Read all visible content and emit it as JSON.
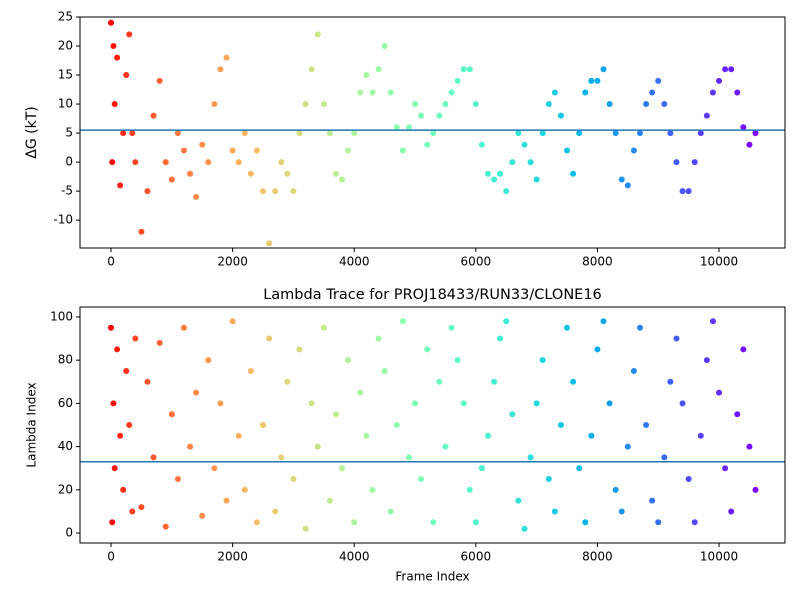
{
  "chart_data": [
    {
      "type": "scatter",
      "ylabel": "ΔG (kT)",
      "colormap": "rainbow_r",
      "xlim": [
        -510,
        11085
      ],
      "ylim": [
        -14.8,
        25
      ],
      "xticks": [
        0,
        2000,
        4000,
        6000,
        8000,
        10000
      ],
      "yticks": [
        -10,
        -5,
        0,
        5,
        10,
        15,
        20,
        25
      ],
      "hline": 5.5,
      "hline_color": "#1f77b4",
      "x": [
        0,
        20,
        40,
        60,
        100,
        150,
        200,
        250,
        300,
        350,
        400,
        500,
        600,
        700,
        800,
        900,
        1000,
        1100,
        1200,
        1300,
        1400,
        1500,
        1600,
        1700,
        1800,
        1900,
        2000,
        2100,
        2200,
        2300,
        2400,
        2500,
        2600,
        2700,
        2800,
        2900,
        3000,
        3100,
        3200,
        3300,
        3400,
        3500,
        3600,
        3700,
        3800,
        3900,
        4000,
        4100,
        4200,
        4300,
        4400,
        4500,
        4600,
        4700,
        4800,
        4900,
        5000,
        5100,
        5200,
        5300,
        5400,
        5500,
        5600,
        5700,
        5800,
        5900,
        6000,
        6100,
        6200,
        6300,
        6400,
        6500,
        6600,
        6700,
        6800,
        6900,
        7000,
        7100,
        7200,
        7300,
        7400,
        7500,
        7600,
        7700,
        7800,
        7900,
        8000,
        8100,
        8200,
        8300,
        8400,
        8500,
        8600,
        8700,
        8800,
        8900,
        9000,
        9100,
        9200,
        9300,
        9400,
        9500,
        9600,
        9700,
        9800,
        9900,
        10000,
        10100,
        10200,
        10300,
        10400,
        10500,
        10600
      ],
      "values": [
        24,
        0,
        20,
        10,
        18,
        -4,
        5,
        15,
        22,
        5,
        0,
        -12,
        -5,
        8,
        14,
        0,
        -3,
        5,
        2,
        -2,
        -6,
        3,
        0,
        10,
        16,
        18,
        2,
        0,
        5,
        -2,
        2,
        -5,
        -14,
        -5,
        0,
        -2,
        -5,
        5,
        10,
        16,
        22,
        10,
        5,
        -2,
        -3,
        2,
        5,
        12,
        15,
        12,
        16,
        20,
        12,
        6,
        2,
        6,
        10,
        8,
        3,
        5,
        8,
        10,
        12,
        14,
        16,
        16,
        10,
        3,
        -2,
        -3,
        -2,
        -5,
        0,
        5,
        3,
        0,
        -3,
        5,
        10,
        12,
        8,
        2,
        -2,
        5,
        12,
        14,
        14,
        16,
        10,
        5,
        -3,
        -4,
        2,
        5,
        10,
        12,
        14,
        10,
        5,
        0,
        -5,
        -5,
        0,
        5,
        8,
        12,
        14,
        16,
        16,
        12,
        6,
        3,
        5
      ]
    },
    {
      "type": "scatter",
      "title": "Lambda Trace for PROJ18433/RUN33/CLONE16",
      "xlabel": "Frame Index",
      "ylabel": "Lambda Index",
      "colormap": "rainbow_r",
      "xlim": [
        -510,
        11085
      ],
      "ylim": [
        -4.6,
        104.6
      ],
      "xticks": [
        0,
        2000,
        4000,
        6000,
        8000,
        10000
      ],
      "yticks": [
        0,
        20,
        40,
        60,
        80,
        100
      ],
      "hline": 33,
      "hline_color": "#1f77b4",
      "x": [
        0,
        20,
        40,
        60,
        100,
        150,
        200,
        250,
        300,
        350,
        400,
        500,
        600,
        700,
        800,
        900,
        1000,
        1100,
        1200,
        1300,
        1400,
        1500,
        1600,
        1700,
        1800,
        1900,
        2000,
        2100,
        2200,
        2300,
        2400,
        2500,
        2600,
        2700,
        2800,
        2900,
        3000,
        3100,
        3200,
        3300,
        3400,
        3500,
        3600,
        3700,
        3800,
        3900,
        4000,
        4100,
        4200,
        4300,
        4400,
        4500,
        4600,
        4700,
        4800,
        4900,
        5000,
        5100,
        5200,
        5300,
        5400,
        5500,
        5600,
        5700,
        5800,
        5900,
        6000,
        6100,
        6200,
        6300,
        6400,
        6500,
        6600,
        6700,
        6800,
        6900,
        7000,
        7100,
        7200,
        7300,
        7400,
        7500,
        7600,
        7700,
        7800,
        7900,
        8000,
        8100,
        8200,
        8300,
        8400,
        8500,
        8600,
        8700,
        8800,
        8900,
        9000,
        9100,
        9200,
        9300,
        9400,
        9500,
        9600,
        9700,
        9800,
        9900,
        10000,
        10100,
        10200,
        10300,
        10400,
        10500,
        10600
      ],
      "values": [
        95,
        5,
        60,
        30,
        85,
        45,
        20,
        75,
        50,
        10,
        90,
        12,
        70,
        35,
        88,
        3,
        55,
        25,
        95,
        40,
        65,
        8,
        80,
        30,
        60,
        15,
        98,
        45,
        20,
        75,
        5,
        50,
        90,
        10,
        35,
        70,
        25,
        85,
        2,
        60,
        40,
        95,
        15,
        55,
        30,
        80,
        5,
        65,
        45,
        20,
        90,
        75,
        10,
        50,
        98,
        35,
        60,
        25,
        85,
        5,
        70,
        40,
        95,
        80,
        60,
        20,
        5,
        30,
        45,
        70,
        90,
        98,
        55,
        15,
        2,
        35,
        60,
        80,
        25,
        10,
        50,
        95,
        70,
        30,
        5,
        45,
        85,
        98,
        60,
        20,
        10,
        40,
        75,
        95,
        50,
        15,
        5,
        35,
        70,
        90,
        60,
        25,
        5,
        45,
        80,
        98,
        65,
        30,
        10,
        55,
        85,
        40,
        20
      ]
    }
  ]
}
